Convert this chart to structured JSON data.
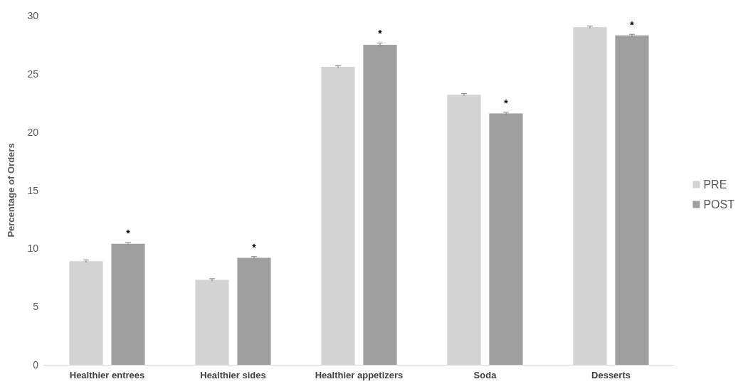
{
  "chart_data": {
    "type": "bar",
    "ylabel": "Percentage of Orders",
    "categories": [
      "Healthier entrees",
      "Healthier sides",
      "Healthier appetizers",
      "Soda",
      "Desserts"
    ],
    "series": [
      {
        "name": "PRE",
        "color": "#d3d3d3",
        "values": [
          8.9,
          7.3,
          25.6,
          23.2,
          29.0
        ],
        "errors": [
          0.1,
          0.1,
          0.1,
          0.1,
          0.1
        ]
      },
      {
        "name": "POST",
        "color": "#9f9f9f",
        "values": [
          10.4,
          9.2,
          27.5,
          21.6,
          28.3
        ],
        "errors": [
          0.1,
          0.1,
          0.15,
          0.1,
          0.1
        ]
      }
    ],
    "annotations": [
      "*",
      "*",
      "*",
      "*",
      "*"
    ],
    "ylim": [
      0,
      30
    ],
    "yticks": [
      0,
      5,
      10,
      15,
      20,
      25,
      30
    ],
    "grid": false,
    "legend": "right"
  }
}
